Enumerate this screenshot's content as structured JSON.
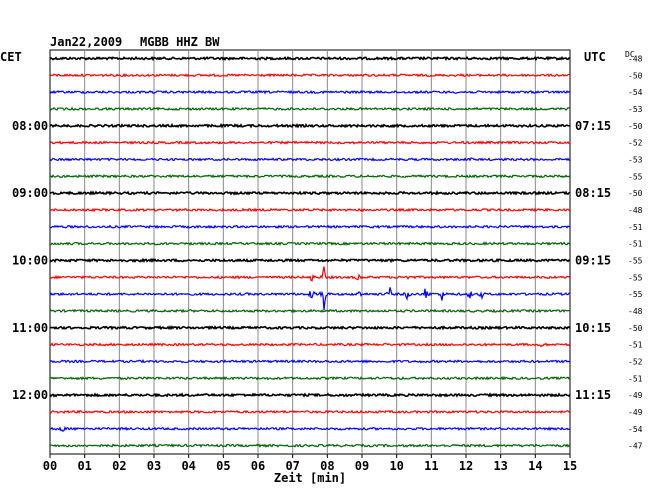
{
  "header": {
    "date": "Jan22,2009",
    "station": "MGBB HHZ BW",
    "left_tz": "CET",
    "right_tz": "UTC",
    "dc_label": "DC"
  },
  "chart_data": {
    "type": "line",
    "title": "Jan22,2009   MGBB HHZ BW",
    "xlabel": "Zeit [min]",
    "xlim": [
      0,
      15
    ],
    "x_ticks": [
      "00",
      "01",
      "02",
      "03",
      "04",
      "05",
      "06",
      "07",
      "08",
      "09",
      "10",
      "11",
      "12",
      "13",
      "14",
      "15"
    ],
    "grid": true,
    "trace_colors": [
      "#000000",
      "#ff0000",
      "#0000ff",
      "#006400"
    ],
    "left_hour_labels": [
      {
        "row": 4,
        "text": "08:00"
      },
      {
        "row": 8,
        "text": "09:00"
      },
      {
        "row": 12,
        "text": "10:00"
      },
      {
        "row": 16,
        "text": "11:00"
      },
      {
        "row": 20,
        "text": "12:00"
      }
    ],
    "right_hour_labels": [
      {
        "row": 4,
        "text": "07:15"
      },
      {
        "row": 8,
        "text": "08:15"
      },
      {
        "row": 12,
        "text": "09:15"
      },
      {
        "row": 16,
        "text": "10:15"
      },
      {
        "row": 20,
        "text": "11:15"
      }
    ],
    "dc_offsets": [
      "-48",
      "-50",
      "-54",
      "-53",
      "-50",
      "-52",
      "-53",
      "-55",
      "-50",
      "-48",
      "-51",
      "-51",
      "-55",
      "-55",
      "-55",
      "-48",
      "-50",
      "-51",
      "-52",
      "-51",
      "-49",
      "-49",
      "-54",
      "-47"
    ],
    "events": [
      {
        "row": 13,
        "minute": 7.55,
        "amplitude": 5
      },
      {
        "row": 13,
        "minute": 7.9,
        "amplitude": 12
      },
      {
        "row": 13,
        "minute": 8.9,
        "amplitude": 5
      },
      {
        "row": 13,
        "minute": 10.3,
        "amplitude": 4
      },
      {
        "row": 14,
        "minute": 7.9,
        "amplitude": 30
      },
      {
        "row": 14,
        "minute": 7.55,
        "amplitude": 8
      },
      {
        "row": 14,
        "minute": 8.9,
        "amplitude": 7
      },
      {
        "row": 14,
        "minute": 9.8,
        "amplitude": 8
      },
      {
        "row": 14,
        "minute": 10.3,
        "amplitude": 6
      },
      {
        "row": 14,
        "minute": 10.85,
        "amplitude": 12
      },
      {
        "row": 14,
        "minute": 11.3,
        "amplitude": 7
      },
      {
        "row": 14,
        "minute": 12.1,
        "amplitude": 6
      },
      {
        "row": 14,
        "minute": 12.45,
        "amplitude": 4
      },
      {
        "row": 17,
        "minute": 14.2,
        "amplitude": 3
      },
      {
        "row": 22,
        "minute": 0.35,
        "amplitude": 4
      },
      {
        "row": 6,
        "minute": 12.1,
        "amplitude": 2
      }
    ]
  }
}
